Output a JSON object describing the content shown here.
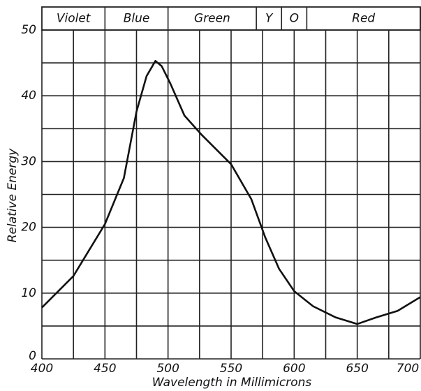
{
  "chart_data": {
    "type": "line",
    "xlabel": "Wavelength in Millimicrons",
    "ylabel": "Relative Energy",
    "bands": [
      {
        "label": "Violet",
        "from": 400,
        "to": 450
      },
      {
        "label": "Blue",
        "from": 450,
        "to": 500
      },
      {
        "label": "Green",
        "from": 500,
        "to": 570
      },
      {
        "label": "Y",
        "from": 570,
        "to": 590
      },
      {
        "label": "O",
        "from": 590,
        "to": 610
      },
      {
        "label": "Red",
        "from": 610,
        "to": 700
      }
    ],
    "x": [
      400,
      425,
      450,
      465,
      475,
      483,
      490,
      495,
      502,
      513,
      527,
      550,
      566,
      577,
      588,
      600,
      615,
      633,
      650,
      665,
      682,
      700
    ],
    "series": [
      {
        "color": "#111111",
        "values": [
          7.8,
          12.6,
          20.5,
          27.5,
          37.6,
          43,
          45.3,
          44.5,
          41.8,
          37,
          34,
          29.6,
          24.3,
          18.5,
          13.7,
          10.3,
          8,
          6.3,
          5.3,
          6.3,
          7.3,
          9.4
        ]
      }
    ],
    "xlim": [
      400,
      700
    ],
    "ylim": [
      0,
      50
    ],
    "xticks": [
      400,
      450,
      500,
      550,
      600,
      650,
      700
    ],
    "yticks": [
      0,
      10,
      20,
      30,
      40,
      50
    ],
    "xgrid": [
      400,
      425,
      450,
      475,
      500,
      525,
      550,
      575,
      600,
      625,
      650,
      675,
      700
    ],
    "ygrid": [
      0,
      5,
      10,
      15,
      20,
      25,
      30,
      35,
      40,
      45,
      50
    ],
    "grid": true
  }
}
